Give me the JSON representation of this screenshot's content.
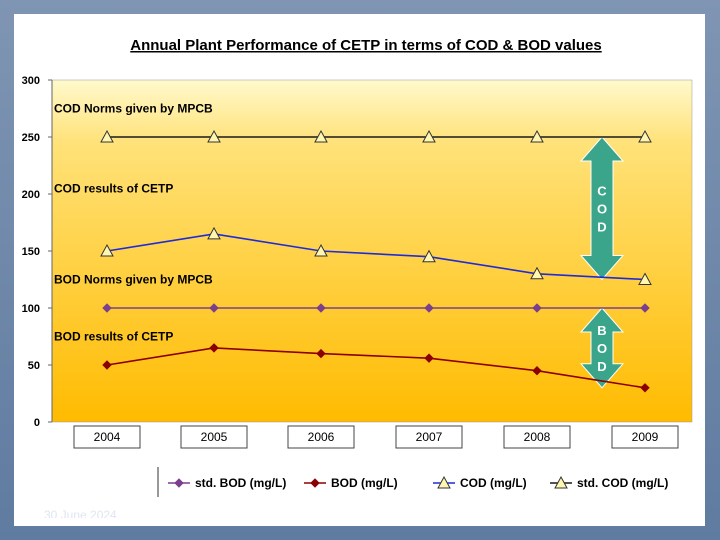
{
  "slide": {
    "footer_date": "30 June 2024"
  },
  "chart_data": {
    "type": "line",
    "title": "Annual Plant Performance of CETP in terms of COD & BOD values",
    "categories": [
      "2004",
      "2005",
      "2006",
      "2007",
      "2008",
      "2009"
    ],
    "ylim": [
      0,
      300
    ],
    "yticks": [
      0,
      50,
      100,
      150,
      200,
      250,
      300
    ],
    "grid": false,
    "series": [
      {
        "key": "std_bod",
        "name": "std. BOD (mg/L)",
        "values": [
          100,
          100,
          100,
          100,
          100,
          100
        ],
        "color": "#7b3f8c",
        "marker": "diamond"
      },
      {
        "key": "bod",
        "name": "BOD    (mg/L)",
        "values": [
          50,
          65,
          60,
          56,
          45,
          30
        ],
        "color": "#8b0000",
        "marker": "diamond"
      },
      {
        "key": "cod",
        "name": "COD  (mg/L)",
        "values": [
          150,
          165,
          150,
          145,
          130,
          125
        ],
        "color": "#1f2bd8",
        "marker": "triangle"
      },
      {
        "key": "std_cod",
        "name": "std. COD  (mg/L)",
        "values": [
          250,
          250,
          250,
          250,
          250,
          250
        ],
        "color": "#1a1a1a",
        "marker": "triangle"
      }
    ],
    "annotations": [
      {
        "text": "COD Norms given by MPCB",
        "y": 275
      },
      {
        "text": "COD results of CETP",
        "y": 205
      },
      {
        "text": "BOD Norms given by MPCB",
        "y": 125
      },
      {
        "text": "BOD results of CETP",
        "y": 75
      }
    ],
    "arrows": [
      {
        "label": [
          "C",
          "O",
          "D"
        ],
        "from": 250,
        "to": 125
      },
      {
        "label": [
          "B",
          "O",
          "D"
        ],
        "from": 100,
        "to": 30
      }
    ],
    "colors": {
      "plot_top": "#fff9cc",
      "plot_bottom": "#ffbb00",
      "arrow_fill": "#3aa58a"
    }
  }
}
